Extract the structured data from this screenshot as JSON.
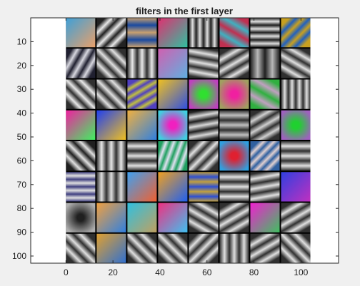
{
  "window": {
    "background": "#f0f0f0",
    "axes_background": "#ffffff"
  },
  "chart_data": {
    "type": "image",
    "title": "filters in the first layer",
    "xlabel": "",
    "ylabel": "",
    "xlim": [
      -15,
      116
    ],
    "ylim": [
      103,
      0
    ],
    "x_ticks": [
      0,
      20,
      40,
      60,
      80,
      100
    ],
    "x_tick_labels": [
      "0",
      "20",
      "40",
      "60",
      "80",
      "100"
    ],
    "y_ticks": [
      10,
      20,
      30,
      40,
      50,
      60,
      70,
      80,
      90,
      100
    ],
    "y_tick_labels": [
      "10",
      "20",
      "30",
      "40",
      "50",
      "60",
      "70",
      "80",
      "90",
      "100"
    ],
    "image_extent_x": [
      0,
      104
    ],
    "image_extent_y": [
      0,
      103
    ],
    "grid": {
      "rows": 8,
      "cols": 8,
      "filter_size": 11,
      "separator_px": 2,
      "separator_color": "#000000"
    },
    "filters": [
      {
        "type": "color",
        "colors": [
          "#3ea0d8",
          "#e8a06a"
        ]
      },
      {
        "type": "stripes",
        "angle": 45,
        "freq": 3,
        "colors": [
          "#222222",
          "#e8e8e8"
        ]
      },
      {
        "type": "stripes",
        "angle": 90,
        "freq": 2,
        "colors": [
          "#c8a070",
          "#1a4aa0"
        ]
      },
      {
        "type": "color",
        "colors": [
          "#e03070",
          "#30c0a0"
        ]
      },
      {
        "type": "stripes",
        "angle": 0,
        "freq": 4,
        "colors": [
          "#202020",
          "#e0e0e0"
        ]
      },
      {
        "type": "stripes",
        "angle": 120,
        "freq": 2,
        "colors": [
          "#c03050",
          "#40b0c0"
        ]
      },
      {
        "type": "stripes",
        "angle": 90,
        "freq": 4,
        "colors": [
          "#202020",
          "#e0e0e0"
        ]
      },
      {
        "type": "stripes",
        "angle": 45,
        "freq": 3,
        "colors": [
          "#c8a020",
          "#2060c0"
        ]
      },
      {
        "type": "stripes",
        "angle": 30,
        "freq": 3,
        "colors": [
          "#202030",
          "#d8d8e0"
        ]
      },
      {
        "type": "stripes",
        "angle": 135,
        "freq": 3,
        "colors": [
          "#303030",
          "#e0e0e0"
        ]
      },
      {
        "type": "stripes",
        "angle": 0,
        "freq": 3,
        "colors": [
          "#303030",
          "#e8e8e8"
        ]
      },
      {
        "type": "color",
        "colors": [
          "#d060b0",
          "#60b0e0"
        ]
      },
      {
        "type": "stripes",
        "angle": 100,
        "freq": 3,
        "colors": [
          "#303030",
          "#e0e0e0"
        ]
      },
      {
        "type": "stripes",
        "angle": 60,
        "freq": 3,
        "colors": [
          "#303030",
          "#e0e0e0"
        ]
      },
      {
        "type": "stripes",
        "angle": 0,
        "freq": 2,
        "colors": [
          "#202020",
          "#b8b8b8"
        ]
      },
      {
        "type": "stripes",
        "angle": 120,
        "freq": 3,
        "colors": [
          "#303030",
          "#e0e0e0"
        ]
      },
      {
        "type": "stripes",
        "angle": 135,
        "freq": 3,
        "colors": [
          "#303030",
          "#e8e8e8"
        ]
      },
      {
        "type": "stripes",
        "angle": 135,
        "freq": 3,
        "colors": [
          "#303030",
          "#e0e0e0"
        ]
      },
      {
        "type": "stripes",
        "angle": 60,
        "freq": 4,
        "colors": [
          "#5040c0",
          "#c0c040"
        ]
      },
      {
        "type": "color",
        "colors": [
          "#f0c020",
          "#3050e0"
        ]
      },
      {
        "type": "blob",
        "colors": [
          "#30e030",
          "#c040c0"
        ]
      },
      {
        "type": "blob",
        "colors": [
          "#f020a0",
          "#a0a060"
        ]
      },
      {
        "type": "stripes",
        "angle": 120,
        "freq": 2,
        "colors": [
          "#30b040",
          "#c0a0c0"
        ]
      },
      {
        "type": "stripes",
        "angle": 0,
        "freq": 4,
        "colors": [
          "#303030",
          "#e0e0e0"
        ]
      },
      {
        "type": "color",
        "colors": [
          "#f020a0",
          "#40f060"
        ]
      },
      {
        "type": "color",
        "colors": [
          "#2040f0",
          "#f0c020"
        ]
      },
      {
        "type": "color",
        "colors": [
          "#f0b040",
          "#3080e0"
        ]
      },
      {
        "type": "blob",
        "colors": [
          "#f020c0",
          "#40d0e0"
        ]
      },
      {
        "type": "stripes",
        "angle": 80,
        "freq": 3,
        "colors": [
          "#202020",
          "#d8d8d8"
        ]
      },
      {
        "type": "stripes",
        "angle": 90,
        "freq": 3,
        "colors": [
          "#303030",
          "#c0c0c0"
        ]
      },
      {
        "type": "stripes",
        "angle": 60,
        "freq": 3,
        "colors": [
          "#303030",
          "#d0d0d0"
        ]
      },
      {
        "type": "blob",
        "colors": [
          "#20d030",
          "#a060c0"
        ]
      },
      {
        "type": "stripes",
        "angle": 135,
        "freq": 3,
        "colors": [
          "#202020",
          "#e0e0e0"
        ]
      },
      {
        "type": "stripes",
        "angle": 0,
        "freq": 3,
        "colors": [
          "#303030",
          "#e8e8e8"
        ]
      },
      {
        "type": "stripes",
        "angle": 90,
        "freq": 3,
        "colors": [
          "#303030",
          "#e0e0e0"
        ]
      },
      {
        "type": "stripes",
        "angle": 20,
        "freq": 4,
        "colors": [
          "#20a060",
          "#e0e0f0"
        ]
      },
      {
        "type": "stripes",
        "angle": 45,
        "freq": 3,
        "colors": [
          "#303030",
          "#e0e0e0"
        ]
      },
      {
        "type": "blob",
        "colors": [
          "#e02030",
          "#30a0e0"
        ]
      },
      {
        "type": "stripes",
        "angle": 45,
        "freq": 4,
        "colors": [
          "#3060a0",
          "#e0d0d0"
        ]
      },
      {
        "type": "stripes",
        "angle": 90,
        "freq": 3,
        "colors": [
          "#303030",
          "#e0e0e0"
        ]
      },
      {
        "type": "stripes",
        "angle": 90,
        "freq": 4,
        "colors": [
          "#404080",
          "#e0e0e0"
        ]
      },
      {
        "type": "stripes",
        "angle": 0,
        "freq": 3,
        "colors": [
          "#303030",
          "#e0e0e0"
        ]
      },
      {
        "type": "color",
        "colors": [
          "#40a0f0",
          "#f06030"
        ]
      },
      {
        "type": "color",
        "colors": [
          "#f0a020",
          "#2060f0"
        ]
      },
      {
        "type": "stripes",
        "angle": 90,
        "freq": 3,
        "colors": [
          "#c0a040",
          "#3050d0"
        ]
      },
      {
        "type": "stripes",
        "angle": 90,
        "freq": 3,
        "colors": [
          "#303030",
          "#e0e0e0"
        ]
      },
      {
        "type": "stripes",
        "angle": 80,
        "freq": 3,
        "colors": [
          "#303030",
          "#e0e0e0"
        ]
      },
      {
        "type": "color",
        "colors": [
          "#3040e0",
          "#c030c0"
        ]
      },
      {
        "type": "blob",
        "colors": [
          "#202020",
          "#b0b0b0"
        ]
      },
      {
        "type": "color",
        "colors": [
          "#f0a040",
          "#3080e0"
        ]
      },
      {
        "type": "color",
        "colors": [
          "#30c0e0",
          "#c0a060"
        ]
      },
      {
        "type": "color",
        "colors": [
          "#f03080",
          "#40c0f0"
        ]
      },
      {
        "type": "stripes",
        "angle": 120,
        "freq": 3,
        "colors": [
          "#303030",
          "#e0e0e0"
        ]
      },
      {
        "type": "stripes",
        "angle": 60,
        "freq": 3,
        "colors": [
          "#303030",
          "#e0e0e0"
        ]
      },
      {
        "type": "color",
        "colors": [
          "#f020d0",
          "#40c060"
        ]
      },
      {
        "type": "stripes",
        "angle": 60,
        "freq": 3,
        "colors": [
          "#303030",
          "#e0e0e0"
        ]
      },
      {
        "type": "stripes",
        "angle": 135,
        "freq": 3,
        "colors": [
          "#303030",
          "#e0e0e0"
        ]
      },
      {
        "type": "color",
        "colors": [
          "#e0a030",
          "#3070d0"
        ]
      },
      {
        "type": "stripes",
        "angle": 135,
        "freq": 3,
        "colors": [
          "#303030",
          "#e0e0e0"
        ]
      },
      {
        "type": "stripes",
        "angle": 135,
        "freq": 3,
        "colors": [
          "#303030",
          "#e0e0e0"
        ]
      },
      {
        "type": "stripes",
        "angle": 45,
        "freq": 3,
        "colors": [
          "#303030",
          "#e0e0e0"
        ]
      },
      {
        "type": "stripes",
        "angle": 0,
        "freq": 3,
        "colors": [
          "#303030",
          "#e0e0e0"
        ]
      },
      {
        "type": "stripes",
        "angle": 60,
        "freq": 3,
        "colors": [
          "#303030",
          "#e0e0e0"
        ]
      },
      {
        "type": "stripes",
        "angle": 135,
        "freq": 3,
        "colors": [
          "#303030",
          "#e0e0e0"
        ]
      }
    ]
  }
}
